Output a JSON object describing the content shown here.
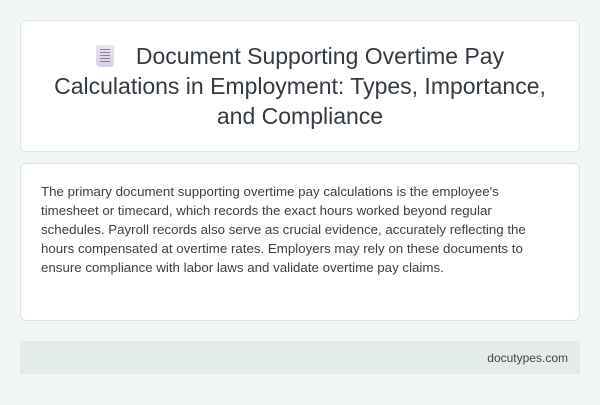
{
  "header": {
    "icon": "receipt-icon",
    "title": "Document Supporting Overtime Pay Calculations in Employment: Types, Importance, and Compliance"
  },
  "content": {
    "paragraph": "The primary document supporting overtime pay calculations is the employee's timesheet or timecard, which records the exact hours worked beyond regular schedules. Payroll records also serve as crucial evidence, accurately reflecting the hours compensated at overtime rates. Employers may rely on these documents to ensure compliance with labor laws and validate overtime pay claims."
  },
  "footer": {
    "site": "docutypes.com"
  }
}
